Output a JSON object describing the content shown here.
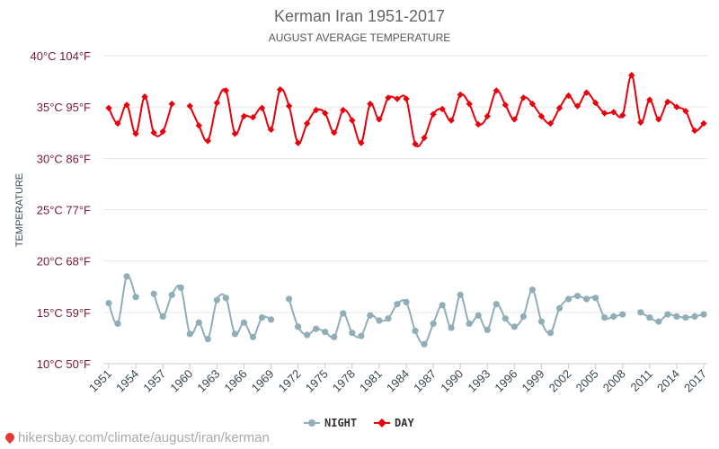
{
  "chart_data": {
    "type": "line",
    "title": "Kerman Iran 1951-2017",
    "subtitle": "AUGUST AVERAGE TEMPERATURE",
    "ylabel": "TEMPERATURE",
    "ylim": [
      10,
      40
    ],
    "yticks": [
      {
        "value": 40,
        "label": "40°C 104°F"
      },
      {
        "value": 35,
        "label": "35°C 95°F"
      },
      {
        "value": 30,
        "label": "30°C 86°F"
      },
      {
        "value": 25,
        "label": "25°C 77°F"
      },
      {
        "value": 20,
        "label": "20°C 68°F"
      },
      {
        "value": 15,
        "label": "15°C 59°F"
      },
      {
        "value": 10,
        "label": "10°C 50°F"
      }
    ],
    "xlabels": [
      "1951",
      "1954",
      "1957",
      "1960",
      "1963",
      "1966",
      "1969",
      "1972",
      "1975",
      "1978",
      "1981",
      "1984",
      "1987",
      "1990",
      "1993",
      "1996",
      "1999",
      "2002",
      "2005",
      "2008",
      "2011",
      "2014",
      "2017"
    ],
    "x": [
      1951,
      1952,
      1953,
      1954,
      1955,
      1956,
      1957,
      1958,
      1959,
      1960,
      1961,
      1962,
      1963,
      1964,
      1965,
      1966,
      1967,
      1968,
      1969,
      1970,
      1971,
      1972,
      1973,
      1974,
      1975,
      1976,
      1977,
      1978,
      1979,
      1980,
      1981,
      1982,
      1983,
      1984,
      1985,
      1986,
      1987,
      1988,
      1989,
      1990,
      1991,
      1992,
      1993,
      1994,
      1995,
      1996,
      1997,
      1998,
      1999,
      2000,
      2001,
      2002,
      2003,
      2004,
      2005,
      2006,
      2007,
      2008,
      2009,
      2010,
      2011,
      2012,
      2013,
      2014,
      2015,
      2016,
      2017
    ],
    "series": [
      {
        "name": "NIGHT",
        "color": "#90aeb8",
        "values": [
          15.9,
          13.9,
          18.5,
          16.5,
          null,
          16.8,
          14.6,
          16.7,
          17.4,
          12.9,
          14.0,
          12.4,
          16.2,
          16.4,
          12.9,
          14.0,
          12.6,
          14.5,
          14.3,
          null,
          16.3,
          13.6,
          12.8,
          13.4,
          13.1,
          12.6,
          14.9,
          13.0,
          12.7,
          14.7,
          14.2,
          14.4,
          15.8,
          16.0,
          13.2,
          11.9,
          13.9,
          15.7,
          13.5,
          16.7,
          13.9,
          14.7,
          13.3,
          15.8,
          14.4,
          13.6,
          14.6,
          17.2,
          14.1,
          13.0,
          15.4,
          16.3,
          16.6,
          16.3,
          16.4,
          14.5,
          14.6,
          14.8,
          null,
          15.0,
          14.5,
          14.1,
          14.8,
          14.6,
          14.5,
          14.6,
          14.8
        ]
      },
      {
        "name": "DAY",
        "color": "#e8000b",
        "values": [
          34.9,
          33.4,
          35.2,
          32.4,
          36.0,
          32.5,
          32.6,
          35.3,
          null,
          35.1,
          33.2,
          31.7,
          35.4,
          36.6,
          32.4,
          34.1,
          34.0,
          34.9,
          32.8,
          36.7,
          35.1,
          31.5,
          33.4,
          34.7,
          34.4,
          32.5,
          34.7,
          33.7,
          31.5,
          35.3,
          33.8,
          35.9,
          35.8,
          35.8,
          31.4,
          32.0,
          34.3,
          34.8,
          33.7,
          36.2,
          35.3,
          33.3,
          34.1,
          36.6,
          35.2,
          33.8,
          35.9,
          35.3,
          34.1,
          33.4,
          34.9,
          36.1,
          35.1,
          36.4,
          35.4,
          34.4,
          34.5,
          34.2,
          38.1,
          33.5,
          35.7,
          33.8,
          35.5,
          35.0,
          34.6,
          32.7,
          33.4
        ]
      }
    ],
    "legend_position": "bottom-center",
    "grid": true
  },
  "credit": {
    "icon": "location-pin-icon",
    "text": "hikersbay.com/climate/august/iran/kerman"
  }
}
